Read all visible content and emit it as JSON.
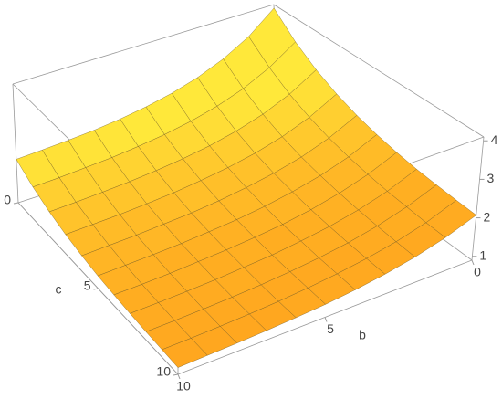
{
  "chart_data": {
    "type": "surface",
    "x_label": "b",
    "y_label": "c",
    "x": [
      0,
      1,
      2,
      3,
      4,
      5,
      6,
      7,
      8,
      9,
      10
    ],
    "y": [
      0,
      1,
      2,
      3,
      4,
      5,
      6,
      7,
      8,
      9,
      10
    ],
    "z": [
      [
        4,
        3.43,
        3.03,
        2.74,
        2.53,
        2.38,
        2.27,
        2.19,
        2.14,
        2.1,
        2.07
      ],
      [
        3.43,
        2.95,
        2.6,
        2.35,
        2.17,
        2.04,
        1.95,
        1.88,
        1.84,
        1.8,
        1.78
      ],
      [
        3.03,
        2.6,
        2.29,
        2.07,
        1.91,
        1.8,
        1.72,
        1.66,
        1.62,
        1.59,
        1.57
      ],
      [
        2.74,
        2.35,
        2.07,
        1.87,
        1.73,
        1.63,
        1.55,
        1.5,
        1.46,
        1.44,
        1.42
      ],
      [
        2.53,
        2.17,
        1.91,
        1.73,
        1.6,
        1.5,
        1.43,
        1.39,
        1.35,
        1.33,
        1.31
      ],
      [
        2.38,
        2.04,
        1.8,
        1.63,
        1.5,
        1.41,
        1.35,
        1.3,
        1.27,
        1.25,
        1.23
      ],
      [
        2.27,
        1.95,
        1.72,
        1.55,
        1.43,
        1.35,
        1.29,
        1.25,
        1.21,
        1.19,
        1.18
      ],
      [
        2.19,
        1.88,
        1.66,
        1.5,
        1.39,
        1.3,
        1.25,
        1.2,
        1.17,
        1.15,
        1.14
      ],
      [
        2.14,
        1.84,
        1.62,
        1.46,
        1.35,
        1.27,
        1.21,
        1.17,
        1.14,
        1.12,
        1.11
      ],
      [
        2.1,
        1.8,
        1.59,
        1.44,
        1.33,
        1.25,
        1.19,
        1.15,
        1.12,
        1.1,
        1.09
      ],
      [
        2.07,
        1.78,
        1.57,
        1.42,
        1.31,
        1.23,
        1.18,
        1.14,
        1.11,
        1.09,
        1.07
      ]
    ],
    "xlim": [
      0,
      10
    ],
    "ylim": [
      0,
      10
    ],
    "zlim": [
      0.9,
      4.1
    ],
    "xticks": [
      0,
      5,
      10
    ],
    "yticks": [
      0,
      5,
      10
    ],
    "zticks": [
      1,
      2,
      3,
      4
    ],
    "color": "#ffa51e",
    "highlight_color": "#ffe83a"
  }
}
